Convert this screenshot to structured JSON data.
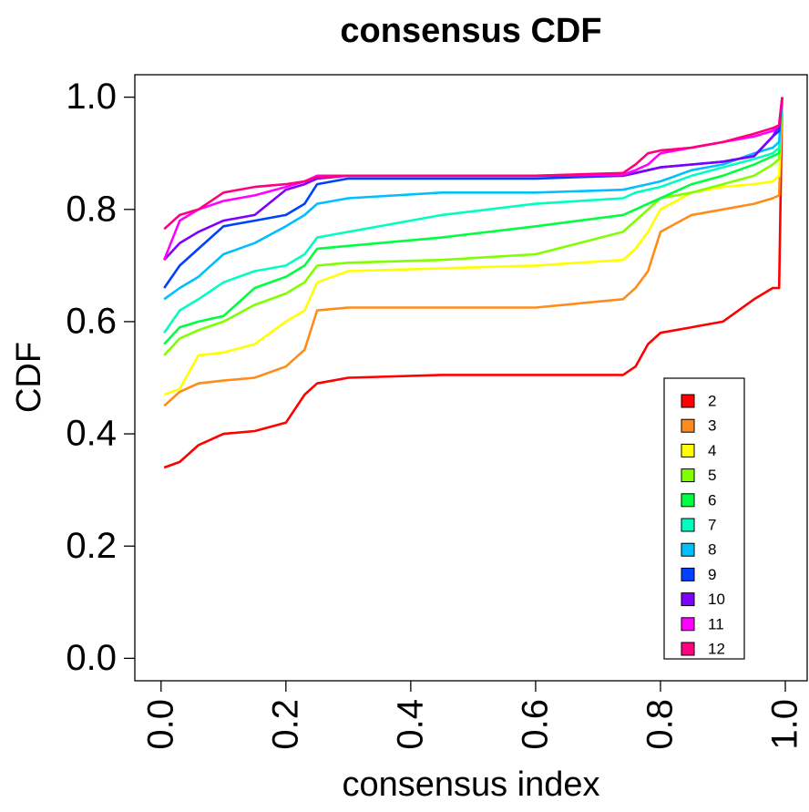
{
  "chart_data": {
    "type": "line",
    "title": "consensus CDF",
    "x_label": "consensus index",
    "y_label": "CDF",
    "x": [
      0.005,
      0.03,
      0.06,
      0.1,
      0.15,
      0.2,
      0.23,
      0.25,
      0.3,
      0.45,
      0.6,
      0.74,
      0.76,
      0.78,
      0.8,
      0.85,
      0.9,
      0.95,
      0.98,
      0.99,
      0.995
    ],
    "series": [
      {
        "name": "2",
        "color": "#FF0000",
        "values": [
          0.34,
          0.35,
          0.38,
          0.4,
          0.405,
          0.42,
          0.47,
          0.49,
          0.5,
          0.505,
          0.505,
          0.505,
          0.52,
          0.56,
          0.58,
          0.59,
          0.6,
          0.64,
          0.66,
          0.66,
          1.0
        ]
      },
      {
        "name": "3",
        "color": "#FF8C1A",
        "values": [
          0.45,
          0.475,
          0.49,
          0.495,
          0.5,
          0.52,
          0.55,
          0.62,
          0.625,
          0.625,
          0.625,
          0.64,
          0.66,
          0.69,
          0.76,
          0.79,
          0.8,
          0.81,
          0.82,
          0.825,
          1.0
        ]
      },
      {
        "name": "4",
        "color": "#FFFF00",
        "values": [
          0.47,
          0.48,
          0.54,
          0.545,
          0.56,
          0.6,
          0.62,
          0.67,
          0.69,
          0.695,
          0.7,
          0.71,
          0.73,
          0.76,
          0.8,
          0.83,
          0.84,
          0.845,
          0.85,
          0.86,
          1.0
        ]
      },
      {
        "name": "5",
        "color": "#80FF00",
        "values": [
          0.54,
          0.57,
          0.585,
          0.6,
          0.63,
          0.65,
          0.67,
          0.7,
          0.705,
          0.71,
          0.72,
          0.76,
          0.78,
          0.8,
          0.82,
          0.83,
          0.845,
          0.86,
          0.88,
          0.89,
          1.0
        ]
      },
      {
        "name": "6",
        "color": "#00FF40",
        "values": [
          0.56,
          0.59,
          0.6,
          0.61,
          0.66,
          0.68,
          0.7,
          0.73,
          0.735,
          0.75,
          0.77,
          0.79,
          0.8,
          0.81,
          0.82,
          0.845,
          0.86,
          0.88,
          0.895,
          0.9,
          1.0
        ]
      },
      {
        "name": "7",
        "color": "#00FFBF",
        "values": [
          0.58,
          0.62,
          0.64,
          0.67,
          0.69,
          0.7,
          0.72,
          0.75,
          0.76,
          0.79,
          0.81,
          0.82,
          0.83,
          0.835,
          0.84,
          0.86,
          0.875,
          0.89,
          0.9,
          0.91,
          1.0
        ]
      },
      {
        "name": "8",
        "color": "#00BFFF",
        "values": [
          0.64,
          0.66,
          0.68,
          0.72,
          0.74,
          0.77,
          0.79,
          0.81,
          0.82,
          0.83,
          0.83,
          0.835,
          0.84,
          0.845,
          0.85,
          0.87,
          0.88,
          0.9,
          0.91,
          0.92,
          1.0
        ]
      },
      {
        "name": "9",
        "color": "#0040FF",
        "values": [
          0.66,
          0.7,
          0.73,
          0.77,
          0.78,
          0.79,
          0.81,
          0.845,
          0.855,
          0.855,
          0.855,
          0.86,
          0.865,
          0.87,
          0.875,
          0.88,
          0.885,
          0.895,
          0.93,
          0.94,
          1.0
        ]
      },
      {
        "name": "10",
        "color": "#8000FF",
        "values": [
          0.71,
          0.74,
          0.76,
          0.78,
          0.79,
          0.835,
          0.845,
          0.855,
          0.86,
          0.86,
          0.86,
          0.86,
          0.865,
          0.87,
          0.875,
          0.88,
          0.885,
          0.895,
          0.93,
          0.95,
          1.0
        ]
      },
      {
        "name": "11",
        "color": "#FF00FF",
        "values": [
          0.71,
          0.78,
          0.8,
          0.815,
          0.825,
          0.84,
          0.85,
          0.86,
          0.86,
          0.86,
          0.86,
          0.862,
          0.87,
          0.88,
          0.9,
          0.91,
          0.92,
          0.93,
          0.94,
          0.95,
          1.0
        ]
      },
      {
        "name": "12",
        "color": "#FF0080",
        "values": [
          0.765,
          0.79,
          0.8,
          0.83,
          0.84,
          0.845,
          0.85,
          0.858,
          0.86,
          0.86,
          0.86,
          0.865,
          0.88,
          0.9,
          0.905,
          0.91,
          0.92,
          0.935,
          0.945,
          0.95,
          1.0
        ]
      }
    ],
    "xlim": [
      -0.042,
      1.035
    ],
    "ylim": [
      -0.04,
      1.04
    ],
    "xticks": [
      {
        "value": 0,
        "label": "0.0"
      },
      {
        "value": 0.2,
        "label": "0.2"
      },
      {
        "value": 0.4,
        "label": "0.4"
      },
      {
        "value": 0.6,
        "label": "0.6"
      },
      {
        "value": 0.8,
        "label": "0.8"
      },
      {
        "value": 1,
        "label": "1.0"
      }
    ],
    "yticks": [
      {
        "value": 0,
        "label": "0.0"
      },
      {
        "value": 0.2,
        "label": "0.2"
      },
      {
        "value": 0.4,
        "label": "0.4"
      },
      {
        "value": 0.6,
        "label": "0.6"
      },
      {
        "value": 0.8,
        "label": "0.8"
      },
      {
        "value": 1,
        "label": "1.0"
      }
    ],
    "grid": false,
    "legend": "bottom-right"
  }
}
